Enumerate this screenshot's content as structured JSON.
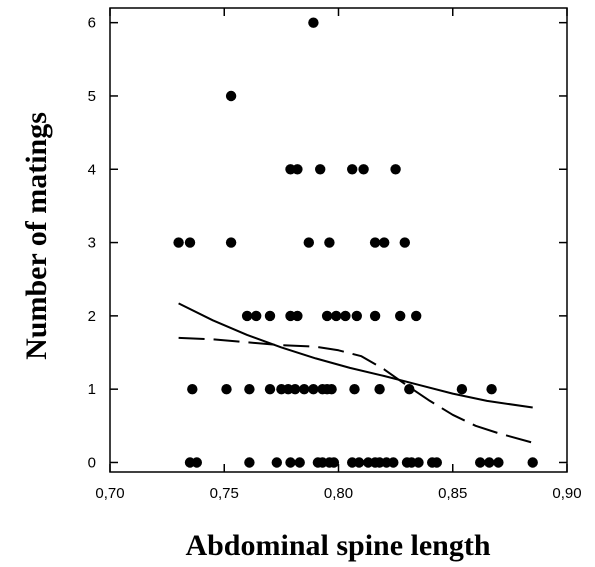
{
  "chart_data": {
    "type": "scatter",
    "xlabel": "Abdominal spine length",
    "ylabel": "Number of matings",
    "xlim": [
      0.7,
      0.9
    ],
    "ylim": [
      -0.13,
      6.2
    ],
    "x_ticks": [
      0.7,
      0.75,
      0.8,
      0.85,
      0.9
    ],
    "x_tick_labels": [
      "0,70",
      "0,75",
      "0,80",
      "0,85",
      "0,90"
    ],
    "y_ticks": [
      0,
      1,
      2,
      3,
      4,
      5,
      6
    ],
    "y_tick_labels": [
      "0",
      "1",
      "2",
      "3",
      "4",
      "5",
      "6"
    ],
    "grid": false,
    "legend": "none",
    "points": [
      {
        "x": 0.789,
        "y": 6
      },
      {
        "x": 0.753,
        "y": 5
      },
      {
        "x": 0.779,
        "y": 4
      },
      {
        "x": 0.782,
        "y": 4
      },
      {
        "x": 0.792,
        "y": 4
      },
      {
        "x": 0.806,
        "y": 4
      },
      {
        "x": 0.811,
        "y": 4
      },
      {
        "x": 0.825,
        "y": 4
      },
      {
        "x": 0.73,
        "y": 3
      },
      {
        "x": 0.735,
        "y": 3
      },
      {
        "x": 0.753,
        "y": 3
      },
      {
        "x": 0.787,
        "y": 3
      },
      {
        "x": 0.796,
        "y": 3
      },
      {
        "x": 0.816,
        "y": 3
      },
      {
        "x": 0.82,
        "y": 3
      },
      {
        "x": 0.829,
        "y": 3
      },
      {
        "x": 0.76,
        "y": 2
      },
      {
        "x": 0.764,
        "y": 2
      },
      {
        "x": 0.77,
        "y": 2
      },
      {
        "x": 0.779,
        "y": 2
      },
      {
        "x": 0.782,
        "y": 2
      },
      {
        "x": 0.795,
        "y": 2
      },
      {
        "x": 0.799,
        "y": 2
      },
      {
        "x": 0.803,
        "y": 2
      },
      {
        "x": 0.808,
        "y": 2
      },
      {
        "x": 0.816,
        "y": 2
      },
      {
        "x": 0.827,
        "y": 2
      },
      {
        "x": 0.834,
        "y": 2
      },
      {
        "x": 0.736,
        "y": 1
      },
      {
        "x": 0.751,
        "y": 1
      },
      {
        "x": 0.761,
        "y": 1
      },
      {
        "x": 0.77,
        "y": 1
      },
      {
        "x": 0.775,
        "y": 1
      },
      {
        "x": 0.778,
        "y": 1
      },
      {
        "x": 0.781,
        "y": 1
      },
      {
        "x": 0.785,
        "y": 1
      },
      {
        "x": 0.789,
        "y": 1
      },
      {
        "x": 0.793,
        "y": 1
      },
      {
        "x": 0.795,
        "y": 1
      },
      {
        "x": 0.797,
        "y": 1
      },
      {
        "x": 0.807,
        "y": 1
      },
      {
        "x": 0.818,
        "y": 1
      },
      {
        "x": 0.831,
        "y": 1
      },
      {
        "x": 0.854,
        "y": 1
      },
      {
        "x": 0.867,
        "y": 1
      },
      {
        "x": 0.735,
        "y": 0
      },
      {
        "x": 0.738,
        "y": 0
      },
      {
        "x": 0.761,
        "y": 0
      },
      {
        "x": 0.773,
        "y": 0
      },
      {
        "x": 0.779,
        "y": 0
      },
      {
        "x": 0.783,
        "y": 0
      },
      {
        "x": 0.791,
        "y": 0
      },
      {
        "x": 0.793,
        "y": 0
      },
      {
        "x": 0.796,
        "y": 0
      },
      {
        "x": 0.798,
        "y": 0
      },
      {
        "x": 0.806,
        "y": 0
      },
      {
        "x": 0.809,
        "y": 0
      },
      {
        "x": 0.813,
        "y": 0
      },
      {
        "x": 0.816,
        "y": 0
      },
      {
        "x": 0.818,
        "y": 0
      },
      {
        "x": 0.821,
        "y": 0
      },
      {
        "x": 0.824,
        "y": 0
      },
      {
        "x": 0.83,
        "y": 0
      },
      {
        "x": 0.832,
        "y": 0
      },
      {
        "x": 0.835,
        "y": 0
      },
      {
        "x": 0.841,
        "y": 0
      },
      {
        "x": 0.843,
        "y": 0
      },
      {
        "x": 0.862,
        "y": 0
      },
      {
        "x": 0.866,
        "y": 0
      },
      {
        "x": 0.87,
        "y": 0
      },
      {
        "x": 0.885,
        "y": 0
      }
    ],
    "lines": [
      {
        "style": "solid",
        "x": [
          0.73,
          0.745,
          0.76,
          0.775,
          0.79,
          0.805,
          0.82,
          0.835,
          0.85,
          0.865,
          0.885
        ],
        "y": [
          2.17,
          1.94,
          1.74,
          1.57,
          1.42,
          1.29,
          1.18,
          1.06,
          0.94,
          0.84,
          0.75
        ]
      },
      {
        "style": "dashed",
        "x": [
          0.73,
          0.745,
          0.76,
          0.775,
          0.79,
          0.8,
          0.81,
          0.82,
          0.83,
          0.84,
          0.85,
          0.86,
          0.87,
          0.885
        ],
        "y": [
          1.7,
          1.68,
          1.64,
          1.6,
          1.58,
          1.53,
          1.45,
          1.27,
          1.05,
          0.84,
          0.65,
          0.5,
          0.4,
          0.27
        ]
      }
    ]
  }
}
